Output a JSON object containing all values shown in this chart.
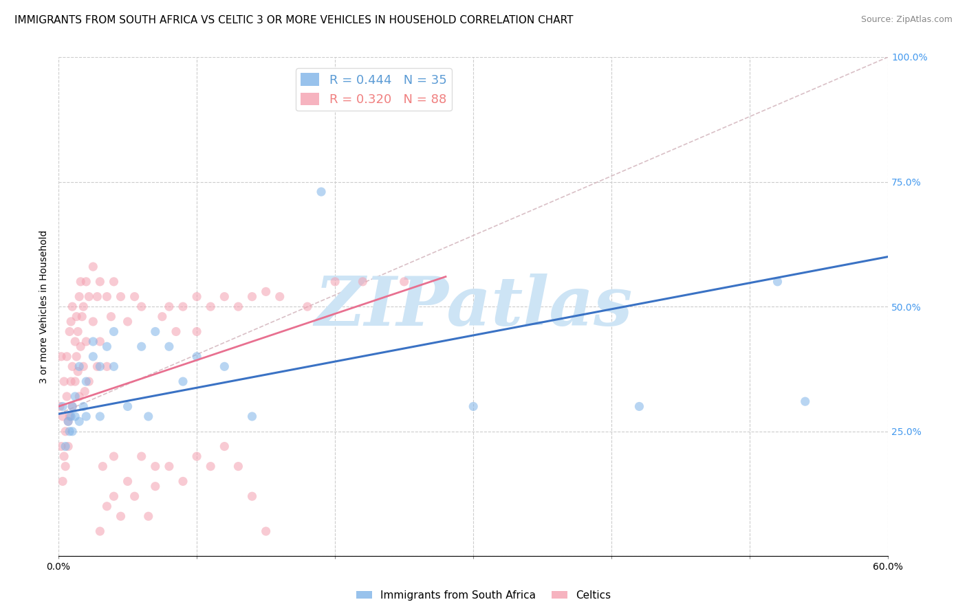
{
  "title": "IMMIGRANTS FROM SOUTH AFRICA VS CELTIC 3 OR MORE VEHICLES IN HOUSEHOLD CORRELATION CHART",
  "source": "Source: ZipAtlas.com",
  "ylabel": "3 or more Vehicles in Household",
  "xlim": [
    0.0,
    0.6
  ],
  "ylim": [
    0.0,
    1.0
  ],
  "xticks": [
    0.0,
    0.1,
    0.2,
    0.3,
    0.4,
    0.5,
    0.6
  ],
  "xticklabels": [
    "0.0%",
    "",
    "",
    "",
    "",
    "",
    "60.0%"
  ],
  "yticks_right": [
    0.0,
    0.25,
    0.5,
    0.75,
    1.0
  ],
  "yticklabels_right": [
    "",
    "25.0%",
    "50.0%",
    "75.0%",
    "100.0%"
  ],
  "legend_entries": [
    {
      "label": "R = 0.444   N = 35",
      "color": "#5b9bd5"
    },
    {
      "label": "R = 0.320   N = 88",
      "color": "#f08080"
    }
  ],
  "blue_scatter_x": [
    0.003,
    0.005,
    0.007,
    0.008,
    0.009,
    0.01,
    0.01,
    0.012,
    0.012,
    0.015,
    0.015,
    0.018,
    0.02,
    0.02,
    0.025,
    0.025,
    0.03,
    0.03,
    0.035,
    0.04,
    0.04,
    0.05,
    0.06,
    0.065,
    0.07,
    0.08,
    0.09,
    0.1,
    0.12,
    0.14,
    0.19,
    0.3,
    0.42,
    0.52,
    0.54
  ],
  "blue_scatter_y": [
    0.3,
    0.22,
    0.27,
    0.25,
    0.28,
    0.3,
    0.25,
    0.28,
    0.32,
    0.38,
    0.27,
    0.3,
    0.35,
    0.28,
    0.4,
    0.43,
    0.38,
    0.28,
    0.42,
    0.38,
    0.45,
    0.3,
    0.42,
    0.28,
    0.45,
    0.42,
    0.35,
    0.4,
    0.38,
    0.28,
    0.73,
    0.3,
    0.3,
    0.55,
    0.31
  ],
  "pink_scatter_x": [
    0.001,
    0.002,
    0.002,
    0.003,
    0.003,
    0.004,
    0.004,
    0.005,
    0.005,
    0.006,
    0.006,
    0.007,
    0.007,
    0.008,
    0.008,
    0.009,
    0.009,
    0.01,
    0.01,
    0.01,
    0.012,
    0.012,
    0.013,
    0.013,
    0.014,
    0.014,
    0.015,
    0.015,
    0.016,
    0.016,
    0.017,
    0.018,
    0.018,
    0.019,
    0.02,
    0.02,
    0.022,
    0.022,
    0.025,
    0.025,
    0.028,
    0.028,
    0.03,
    0.03,
    0.032,
    0.035,
    0.035,
    0.038,
    0.04,
    0.04,
    0.045,
    0.05,
    0.055,
    0.06,
    0.065,
    0.07,
    0.075,
    0.08,
    0.085,
    0.09,
    0.1,
    0.1,
    0.11,
    0.12,
    0.13,
    0.14,
    0.15,
    0.16,
    0.18,
    0.2,
    0.22,
    0.25,
    0.03,
    0.035,
    0.04,
    0.045,
    0.05,
    0.055,
    0.06,
    0.07,
    0.08,
    0.09,
    0.1,
    0.11,
    0.12,
    0.13,
    0.14,
    0.15
  ],
  "pink_scatter_y": [
    0.3,
    0.22,
    0.4,
    0.15,
    0.28,
    0.2,
    0.35,
    0.25,
    0.18,
    0.32,
    0.4,
    0.27,
    0.22,
    0.45,
    0.28,
    0.35,
    0.47,
    0.38,
    0.3,
    0.5,
    0.43,
    0.35,
    0.48,
    0.4,
    0.37,
    0.45,
    0.52,
    0.32,
    0.55,
    0.42,
    0.48,
    0.38,
    0.5,
    0.33,
    0.55,
    0.43,
    0.52,
    0.35,
    0.58,
    0.47,
    0.52,
    0.38,
    0.55,
    0.43,
    0.18,
    0.52,
    0.38,
    0.48,
    0.55,
    0.2,
    0.52,
    0.47,
    0.52,
    0.5,
    0.08,
    0.18,
    0.48,
    0.5,
    0.45,
    0.5,
    0.52,
    0.45,
    0.5,
    0.52,
    0.5,
    0.52,
    0.53,
    0.52,
    0.5,
    0.55,
    0.55,
    0.55,
    0.05,
    0.1,
    0.12,
    0.08,
    0.15,
    0.12,
    0.2,
    0.14,
    0.18,
    0.15,
    0.2,
    0.18,
    0.22,
    0.18,
    0.12,
    0.05
  ],
  "blue_line": {
    "x0": 0.0,
    "y0": 0.285,
    "x1": 0.6,
    "y1": 0.6
  },
  "pink_line": {
    "x0": 0.0,
    "y0": 0.3,
    "x1": 0.28,
    "y1": 0.56
  },
  "gray_dash_line": {
    "x0": 0.0,
    "y0": 0.285,
    "x1": 0.6,
    "y1": 1.0
  },
  "background_color": "#ffffff",
  "grid_color": "#cccccc",
  "blue_color": "#7fb3e8",
  "pink_color": "#f4a0b0",
  "blue_line_color": "#3a72c4",
  "pink_line_color": "#e87090",
  "gray_dash_color": "#d0b0b8",
  "watermark": "ZIPatlas",
  "watermark_color": "#cde4f5",
  "title_fontsize": 11,
  "axis_label_fontsize": 10,
  "tick_fontsize": 10,
  "right_tick_color": "#4499ee",
  "scatter_alpha": 0.55,
  "scatter_size": 90
}
